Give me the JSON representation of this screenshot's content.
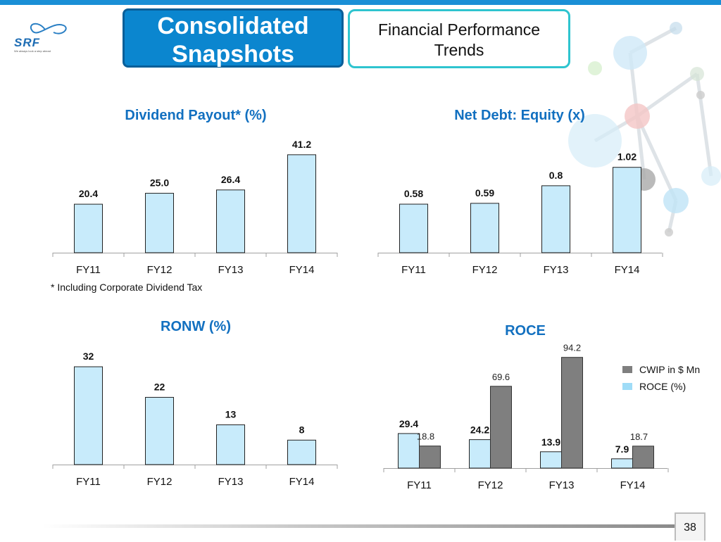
{
  "header": {
    "title_line1": "Consolidated",
    "title_line2": "Snapshots",
    "subtitle_line1": "Financial Performance",
    "subtitle_line2": "Trends"
  },
  "logo": {
    "text": "SRF",
    "tagline": "We always look a step ahead"
  },
  "footnote": "* Including Corporate Dividend Tax",
  "page_number": "38",
  "colors": {
    "bar_light": "#c8ebfb",
    "bar_dark": "#7f7f7f",
    "title_blue": "#1270c0",
    "accent_blue": "#0b86cf"
  },
  "chart_data": [
    {
      "type": "bar",
      "title": "Dividend Payout* (%)",
      "categories": [
        "FY11",
        "FY12",
        "FY13",
        "FY14"
      ],
      "values": [
        20.4,
        25.0,
        26.4,
        41.2
      ],
      "labels": [
        "20.4",
        "25.0",
        "26.4",
        "41.2"
      ],
      "ylim": [
        0,
        45
      ]
    },
    {
      "type": "bar",
      "title": "Net Debt: Equity (x)",
      "categories": [
        "FY11",
        "FY12",
        "FY13",
        "FY14"
      ],
      "values": [
        0.58,
        0.59,
        0.8,
        1.02
      ],
      "labels": [
        "0.58",
        "0.59",
        "0.8",
        "1.02"
      ],
      "ylim": [
        0,
        1.11
      ]
    },
    {
      "type": "bar",
      "title": "RONW (%)",
      "categories": [
        "FY11",
        "FY12",
        "FY13",
        "FY14"
      ],
      "values": [
        32,
        22,
        13,
        8
      ],
      "labels": [
        "32",
        "22",
        "13",
        "8"
      ],
      "ylim": [
        0,
        35
      ]
    },
    {
      "type": "bar",
      "title": "ROCE",
      "categories": [
        "FY11",
        "FY12",
        "FY13",
        "FY14"
      ],
      "ylim": [
        0,
        100
      ],
      "legend": "right",
      "series": [
        {
          "name": "ROCE  (%)",
          "values": [
            29.4,
            24.2,
            13.9,
            7.9
          ],
          "labels": [
            "29.4",
            "24.2",
            "13.9",
            "7.9"
          ]
        },
        {
          "name": "CWIP in $ Mn",
          "values": [
            18.8,
            69.6,
            94.2,
            18.7
          ],
          "labels": [
            "18.8",
            "69.6",
            "94.2",
            "18.7"
          ]
        }
      ]
    }
  ]
}
